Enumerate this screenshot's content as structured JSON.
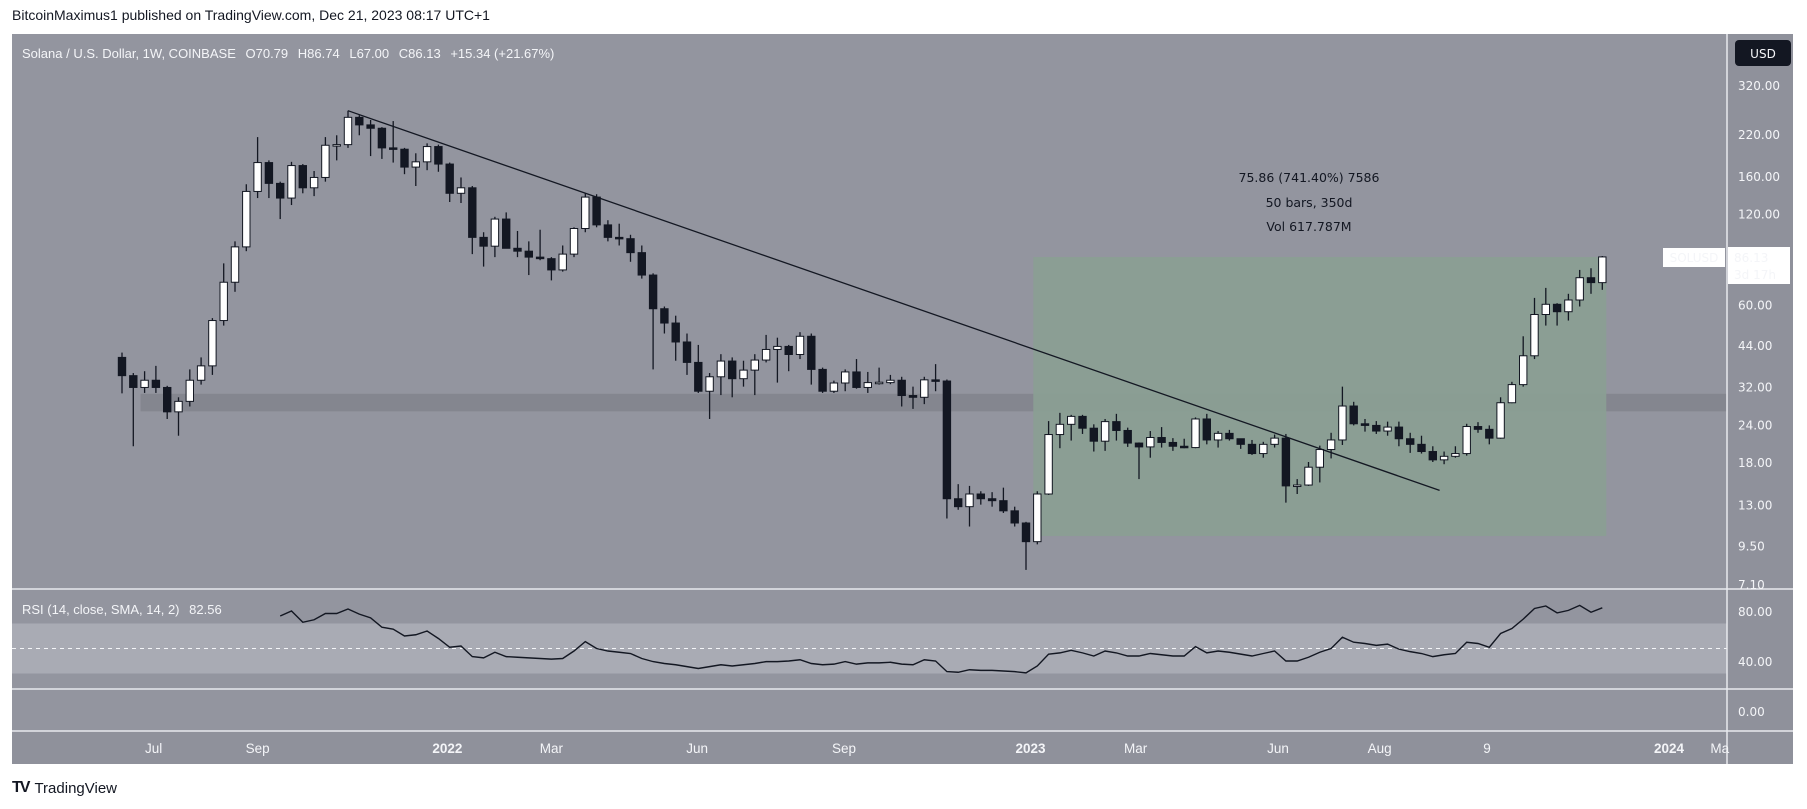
{
  "header": {
    "published": "BitcoinMaximus1 published on TradingView.com, Dec 21, 2023 08:17 UTC+1"
  },
  "footer": {
    "brand": "TradingView"
  },
  "legend": {
    "symbol": "Solana / U.S. Dollar, 1W, COINBASE",
    "o_label": "O",
    "o": "70.79",
    "h_label": "H",
    "h": "86.74",
    "l_label": "L",
    "l": "67.00",
    "c_label": "C",
    "c": "86.13",
    "change": "+15.34 (+21.67%)"
  },
  "currency_button": "USD",
  "price_tag": {
    "symbol": "SOLUSD",
    "price": "86.13",
    "countdown": "3d 17h"
  },
  "measure_label": {
    "line1": "75.86 (741.40%) 7586",
    "line2": "50 bars, 350d",
    "line3": "Vol 617.787M"
  },
  "rsi_legend": {
    "label": "RSI (14, close, SMA, 14, 2)",
    "value": "82.56"
  },
  "colors": {
    "background": "#93959f",
    "axis": "#8f919b",
    "bull": "#ffffff",
    "bear": "#131722",
    "measure": "#8a9e94",
    "support": "#84868f",
    "rsi_band": "#a9abb4"
  },
  "chart_data": {
    "type": "candlestick",
    "title": "Solana / U.S. Dollar, 1W, COINBASE",
    "y_scale": "log",
    "y_ticks": [
      {
        "value": 320,
        "label": "320.00"
      },
      {
        "value": 220,
        "label": "220.00"
      },
      {
        "value": 160,
        "label": "160.00"
      },
      {
        "value": 120,
        "label": "120.00"
      },
      {
        "value": 60,
        "label": "60.00"
      },
      {
        "value": 44,
        "label": "44.00"
      },
      {
        "value": 32,
        "label": "32.00"
      },
      {
        "value": 24,
        "label": "24.00"
      },
      {
        "value": 18,
        "label": "18.00"
      },
      {
        "value": 13,
        "label": "13.00"
      },
      {
        "value": 9.5,
        "label": "9.50"
      },
      {
        "value": 7.1,
        "label": "7.10"
      }
    ],
    "x_ticks": [
      {
        "bar": 2.8,
        "label": "Jul",
        "bold": false
      },
      {
        "bar": 12,
        "label": "Sep",
        "bold": false
      },
      {
        "bar": 28.8,
        "label": "2022",
        "bold": true
      },
      {
        "bar": 38,
        "label": "Mar",
        "bold": false
      },
      {
        "bar": 50.9,
        "label": "Jun",
        "bold": false
      },
      {
        "bar": 63.9,
        "label": "Sep",
        "bold": false
      },
      {
        "bar": 80.4,
        "label": "2023",
        "bold": true
      },
      {
        "bar": 89.7,
        "label": "Mar",
        "bold": false
      },
      {
        "bar": 102.3,
        "label": "Jun",
        "bold": false
      },
      {
        "bar": 111.3,
        "label": "Aug",
        "bold": false
      },
      {
        "bar": 120.8,
        "label": "9",
        "bold": false
      },
      {
        "bar": 136.9,
        "label": "2024",
        "bold": true
      },
      {
        "bar": 141.4,
        "label": "Ma",
        "bold": false
      }
    ],
    "ohlc_fields": [
      "open",
      "high",
      "low",
      "close"
    ],
    "ohlc": [
      [
        40,
        41.5,
        30.4,
        34.8
      ],
      [
        34.8,
        35.5,
        20.3,
        31.8
      ],
      [
        31.8,
        36,
        30.5,
        33.6
      ],
      [
        33.6,
        37.5,
        30.5,
        31.8
      ],
      [
        31.8,
        32.2,
        25,
        26.4
      ],
      [
        26.4,
        29.5,
        22,
        28.6
      ],
      [
        28.6,
        36.5,
        27.5,
        33.6
      ],
      [
        33.6,
        40,
        32.5,
        37.5
      ],
      [
        37.5,
        54,
        35,
        53
      ],
      [
        53,
        82,
        51,
        71
      ],
      [
        71,
        97,
        66,
        93
      ],
      [
        93,
        150,
        90,
        142
      ],
      [
        142,
        215,
        135,
        177
      ],
      [
        177,
        180,
        135,
        151
      ],
      [
        151,
        153,
        115,
        135
      ],
      [
        135,
        178,
        128,
        173
      ],
      [
        173,
        175,
        140,
        146
      ],
      [
        146,
        166,
        137,
        158
      ],
      [
        158,
        215,
        153,
        202
      ],
      [
        202,
        218,
        180,
        203
      ],
      [
        203,
        263,
        198,
        250
      ],
      [
        250,
        254,
        218,
        236
      ],
      [
        236,
        245,
        186,
        230
      ],
      [
        230,
        232,
        182,
        198
      ],
      [
        198,
        243,
        177,
        196
      ],
      [
        196,
        198,
        162,
        171
      ],
      [
        171,
        190,
        148,
        178
      ],
      [
        178,
        205,
        167,
        200
      ],
      [
        200,
        203,
        165,
        175
      ],
      [
        175,
        177,
        131,
        140
      ],
      [
        140,
        158,
        130,
        146
      ],
      [
        146,
        148,
        88,
        100
      ],
      [
        100,
        104,
        80,
        93.5
      ],
      [
        93.5,
        117,
        86,
        115
      ],
      [
        115,
        121,
        92,
        92
      ],
      [
        92,
        105,
        86,
        90
      ],
      [
        90,
        97,
        75,
        86
      ],
      [
        86,
        106,
        84,
        85
      ],
      [
        85,
        86,
        72,
        78
      ],
      [
        78,
        94,
        77,
        88
      ],
      [
        88,
        108,
        86,
        107
      ],
      [
        107,
        140,
        104,
        136
      ],
      [
        136,
        139,
        108,
        110
      ],
      [
        110,
        114,
        97,
        100
      ],
      [
        100,
        111,
        94,
        99
      ],
      [
        99,
        102,
        83,
        89
      ],
      [
        89,
        94,
        73,
        75
      ],
      [
        75,
        76,
        36.5,
        58
      ],
      [
        58,
        59,
        48,
        52
      ],
      [
        52,
        55,
        39,
        45
      ],
      [
        45,
        48,
        35,
        38.5
      ],
      [
        38.5,
        44,
        30.5,
        30.9
      ],
      [
        30.9,
        35.5,
        25,
        34.5
      ],
      [
        34.5,
        41,
        30,
        38.9
      ],
      [
        38.9,
        40,
        29.5,
        34
      ],
      [
        34,
        39,
        32,
        36.3
      ],
      [
        36.3,
        41,
        30,
        39.2
      ],
      [
        39.2,
        47.5,
        38.5,
        42.5
      ],
      [
        42.5,
        46.5,
        33,
        43.5
      ],
      [
        43.5,
        44,
        36,
        40.9
      ],
      [
        40.9,
        48.5,
        39.5,
        47
      ],
      [
        47,
        48,
        32.5,
        36.5
      ],
      [
        36.5,
        37,
        30.5,
        30.9
      ],
      [
        30.9,
        33.5,
        30.5,
        32.9
      ],
      [
        32.9,
        36.5,
        30.9,
        35.8
      ],
      [
        35.8,
        39.5,
        31.5,
        31.8
      ],
      [
        31.8,
        35.8,
        30.5,
        33
      ],
      [
        33,
        37,
        32.5,
        33.1
      ],
      [
        33,
        35,
        32.6,
        33.6
      ],
      [
        33.6,
        34.5,
        27.5,
        29.9
      ],
      [
        29.9,
        32,
        27,
        29.5
      ],
      [
        29.5,
        34.5,
        28,
        33.7
      ],
      [
        33.7,
        38,
        30.9,
        33.4
      ],
      [
        33.4,
        33.8,
        11.7,
        13.6
      ],
      [
        13.6,
        15.2,
        12.5,
        12.8
      ],
      [
        12.8,
        15,
        11,
        14.1
      ],
      [
        14.1,
        14.4,
        13,
        13.6
      ],
      [
        13.6,
        14.3,
        12.8,
        13.4
      ],
      [
        13.4,
        14.8,
        12.2,
        12.4
      ],
      [
        12.4,
        12.8,
        11,
        11.3
      ],
      [
        11.3,
        11.4,
        7.9,
        9.8
      ],
      [
        9.8,
        14.4,
        9.6,
        14.1
      ],
      [
        14.1,
        24.6,
        14,
        22.2
      ],
      [
        22.2,
        26.2,
        20,
        24
      ],
      [
        24,
        25.8,
        21.2,
        25.5
      ],
      [
        25.5,
        25.8,
        22.3,
        23.3
      ],
      [
        23.3,
        24,
        19.5,
        21.1
      ],
      [
        21.1,
        25,
        19.6,
        24.5
      ],
      [
        24.5,
        26,
        21.2,
        22.9
      ],
      [
        22.9,
        23.4,
        20.2,
        20.8
      ],
      [
        20.8,
        20.9,
        15.8,
        20.2
      ],
      [
        20.2,
        22.8,
        18.6,
        21.7
      ],
      [
        21.7,
        23.5,
        20.1,
        20.9
      ],
      [
        20.9,
        21.6,
        19.6,
        20.3
      ],
      [
        20.3,
        21.5,
        20,
        20.1
      ],
      [
        20.1,
        25.3,
        20,
        25
      ],
      [
        25,
        26,
        20.6,
        21.3
      ],
      [
        21.3,
        22.8,
        20.1,
        22.4
      ],
      [
        22.4,
        23,
        21.2,
        21.5
      ],
      [
        21.5,
        21.5,
        19.9,
        20.6
      ],
      [
        20.6,
        21.3,
        19,
        19.2
      ],
      [
        19.2,
        21,
        18.6,
        20.6
      ],
      [
        20.6,
        22.2,
        20.1,
        21.6
      ],
      [
        21.6,
        22.3,
        13.2,
        15
      ],
      [
        15,
        15.8,
        14.1,
        15.1
      ],
      [
        15.1,
        18,
        15,
        17.3
      ],
      [
        17.3,
        20.4,
        15.4,
        19.8
      ],
      [
        19.8,
        22.5,
        18.5,
        21.3
      ],
      [
        21.3,
        32,
        20.5,
        27.6
      ],
      [
        27.6,
        28.5,
        23.8,
        24.1
      ],
      [
        24.1,
        25,
        22.7,
        23.8
      ],
      [
        23.8,
        24.6,
        22.3,
        22.8
      ],
      [
        22.8,
        24.5,
        22,
        23.5
      ],
      [
        23.5,
        24.5,
        20.3,
        21.5
      ],
      [
        21.5,
        22.5,
        19.3,
        20.6
      ],
      [
        20.6,
        22,
        19.2,
        19.5
      ],
      [
        19.5,
        20.3,
        18,
        18.3
      ],
      [
        18.3,
        19.5,
        17.7,
        18.8
      ],
      [
        18.8,
        20.3,
        18.6,
        19.2
      ],
      [
        19.2,
        24.1,
        18.9,
        23.6
      ],
      [
        23.6,
        24.4,
        22.5,
        23.1
      ],
      [
        23.1,
        23.8,
        20.6,
        21.6
      ],
      [
        21.6,
        29.5,
        21.5,
        28.3
      ],
      [
        28.3,
        33.2,
        28.2,
        32.5
      ],
      [
        32.5,
        47,
        32,
        40.5
      ],
      [
        40.5,
        63,
        39.5,
        55.5
      ],
      [
        55.5,
        68,
        51,
        60
      ],
      [
        60,
        60.5,
        51,
        56.7
      ],
      [
        56.7,
        65,
        53,
        62
      ],
      [
        62,
        78,
        59,
        73.5
      ],
      [
        73.5,
        79,
        65,
        70.8
      ],
      [
        70.79,
        86.74,
        67,
        86.13
      ]
    ],
    "trendline": {
      "from": {
        "bar": 20,
        "price": 263
      },
      "to": {
        "bar": 116.6,
        "price": 14.5
      }
    },
    "support_zone": {
      "from_bar": 2,
      "low": 26.5,
      "high": 30.3
    },
    "measure": {
      "from_bar": 81,
      "to_bar": 131,
      "low": 10.23,
      "high": 86.09,
      "change": 75.86,
      "change_pct": 741.4,
      "bars": 50,
      "days": 350
    },
    "rsi": {
      "start_bar": 14,
      "ylim": [
        0,
        100
      ],
      "y_ticks": [
        {
          "value": 80,
          "label": "80.00"
        },
        {
          "value": 40,
          "label": "40.00"
        },
        {
          "value": 0,
          "label": "0.00"
        }
      ],
      "band": [
        30,
        70
      ],
      "mid": 50,
      "values": [
        76,
        80,
        71,
        73,
        78,
        78,
        81.6,
        77.5,
        74.5,
        67,
        65.5,
        60,
        61,
        64,
        58,
        51,
        52,
        43.5,
        42.5,
        47,
        43.5,
        43,
        42.5,
        42,
        41.5,
        42,
        48,
        55.5,
        50,
        48,
        47,
        46,
        42,
        39.5,
        38,
        37,
        35.5,
        34,
        35.5,
        37,
        36,
        37,
        38,
        39.5,
        39.5,
        40,
        41,
        38,
        37,
        37.5,
        39.5,
        37.5,
        38.5,
        38.5,
        39,
        37.5,
        37,
        41,
        40,
        31.5,
        31,
        33,
        32.5,
        32.5,
        32,
        31.5,
        30.5,
        36,
        45.5,
        46.5,
        48.5,
        46.5,
        44,
        48,
        46.5,
        44,
        44,
        46,
        45,
        44,
        44,
        51.5,
        46.5,
        48,
        47,
        45.5,
        44,
        46,
        48,
        40,
        40,
        43,
        47,
        50,
        59,
        55,
        54,
        52.5,
        53.5,
        49.5,
        47.5,
        46,
        43.5,
        45,
        46,
        55,
        54,
        51,
        62,
        66,
        73.5,
        82,
        84,
        78.5,
        80.5,
        84.5,
        79,
        82.56
      ]
    }
  }
}
